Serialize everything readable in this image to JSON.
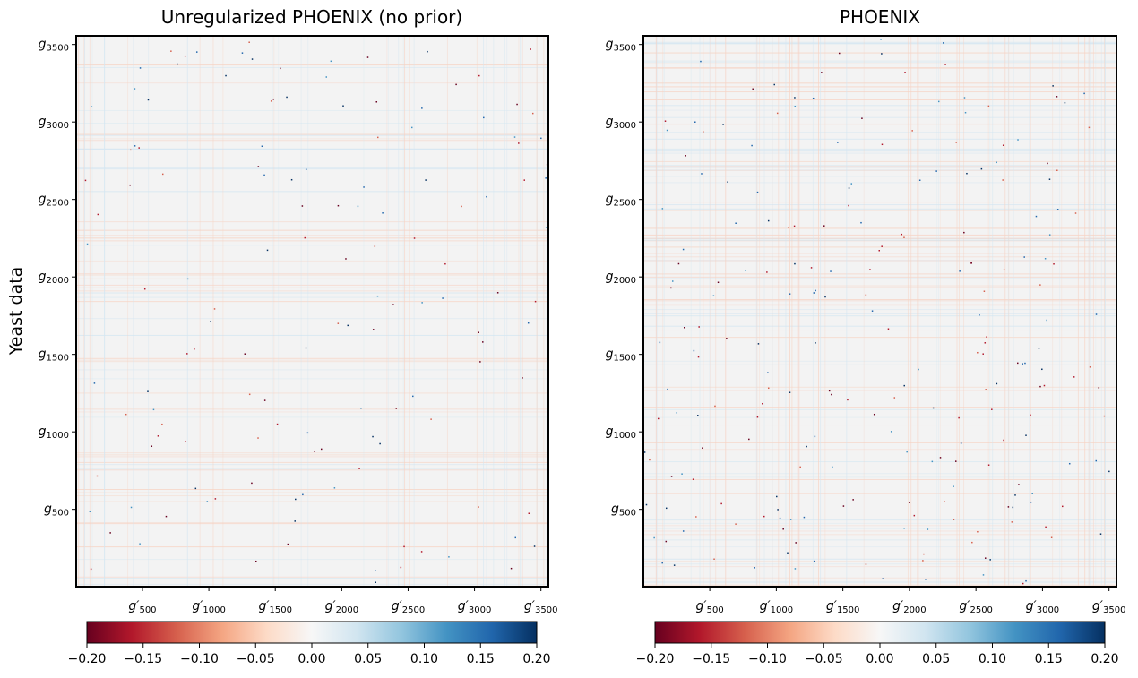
{
  "chart_data": [
    {
      "type": "heatmap",
      "title": "Unregularized PHOENIX (no prior)",
      "ylabel": "Yeast data",
      "xlabel": "",
      "x_range": [
        1,
        3556
      ],
      "y_range": [
        1,
        3556
      ],
      "x_ticks": [
        {
          "value": 500,
          "base": "g′",
          "sub": "500"
        },
        {
          "value": 1000,
          "base": "g′",
          "sub": "1000"
        },
        {
          "value": 1500,
          "base": "g′",
          "sub": "1500"
        },
        {
          "value": 2000,
          "base": "g′",
          "sub": "2000"
        },
        {
          "value": 2500,
          "base": "g′",
          "sub": "2500"
        },
        {
          "value": 3000,
          "base": "g′",
          "sub": "3000"
        },
        {
          "value": 3500,
          "base": "g′",
          "sub": "3500"
        }
      ],
      "y_ticks": [
        {
          "value": 500,
          "base": "g",
          "sub": "500"
        },
        {
          "value": 1000,
          "base": "g",
          "sub": "1000"
        },
        {
          "value": 1500,
          "base": "g",
          "sub": "1500"
        },
        {
          "value": 2000,
          "base": "g",
          "sub": "2000"
        },
        {
          "value": 2500,
          "base": "g",
          "sub": "2500"
        },
        {
          "value": 3000,
          "base": "g",
          "sub": "3000"
        },
        {
          "value": 3500,
          "base": "g",
          "sub": "3500"
        }
      ],
      "colorbar": {
        "colormap": "RdBu",
        "range": [
          -0.2,
          0.2
        ],
        "orientation": "horizontal",
        "ticks": [
          "−0.20",
          "−0.15",
          "−0.10",
          "−0.05",
          "0.00",
          "0.05",
          "0.10",
          "0.15",
          "0.20"
        ]
      },
      "pattern": "mostly near 0, sparse faint red/blue streaks",
      "grid": false
    },
    {
      "type": "heatmap",
      "title": "PHOENIX",
      "ylabel": "",
      "xlabel": "",
      "x_range": [
        1,
        3556
      ],
      "y_range": [
        1,
        3556
      ],
      "x_ticks": [
        {
          "value": 500,
          "base": "g′",
          "sub": "500"
        },
        {
          "value": 1000,
          "base": "g′",
          "sub": "1000"
        },
        {
          "value": 1500,
          "base": "g′",
          "sub": "1500"
        },
        {
          "value": 2000,
          "base": "g′",
          "sub": "2000"
        },
        {
          "value": 2500,
          "base": "g′",
          "sub": "2500"
        },
        {
          "value": 3000,
          "base": "g′",
          "sub": "3000"
        },
        {
          "value": 3500,
          "base": "g′",
          "sub": "3500"
        }
      ],
      "y_ticks": [
        {
          "value": 500,
          "base": "g",
          "sub": "500"
        },
        {
          "value": 1000,
          "base": "g",
          "sub": "1000"
        },
        {
          "value": 1500,
          "base": "g",
          "sub": "1500"
        },
        {
          "value": 2000,
          "base": "g",
          "sub": "2000"
        },
        {
          "value": 2500,
          "base": "g",
          "sub": "2500"
        },
        {
          "value": 3000,
          "base": "g",
          "sub": "3000"
        },
        {
          "value": 3500,
          "base": "g",
          "sub": "3500"
        }
      ],
      "colorbar": {
        "colormap": "RdBu",
        "range": [
          -0.2,
          0.2
        ],
        "orientation": "horizontal",
        "ticks": [
          "−0.20",
          "−0.15",
          "−0.10",
          "−0.05",
          "0.00",
          "0.05",
          "0.10",
          "0.15",
          "0.20"
        ]
      },
      "pattern": "mostly near 0, denser faint red/blue streaks",
      "grid": false
    }
  ],
  "colors": {
    "background": "#f3f3f3",
    "red_faint": "#f6d3c4",
    "blue_faint": "#d4e6f1",
    "cmap_stops": [
      "#67001f",
      "#b2182b",
      "#d6604d",
      "#f4a582",
      "#fddbc7",
      "#f7f7f7",
      "#d1e5f0",
      "#92c5de",
      "#4393c3",
      "#2166ac",
      "#053061"
    ]
  }
}
